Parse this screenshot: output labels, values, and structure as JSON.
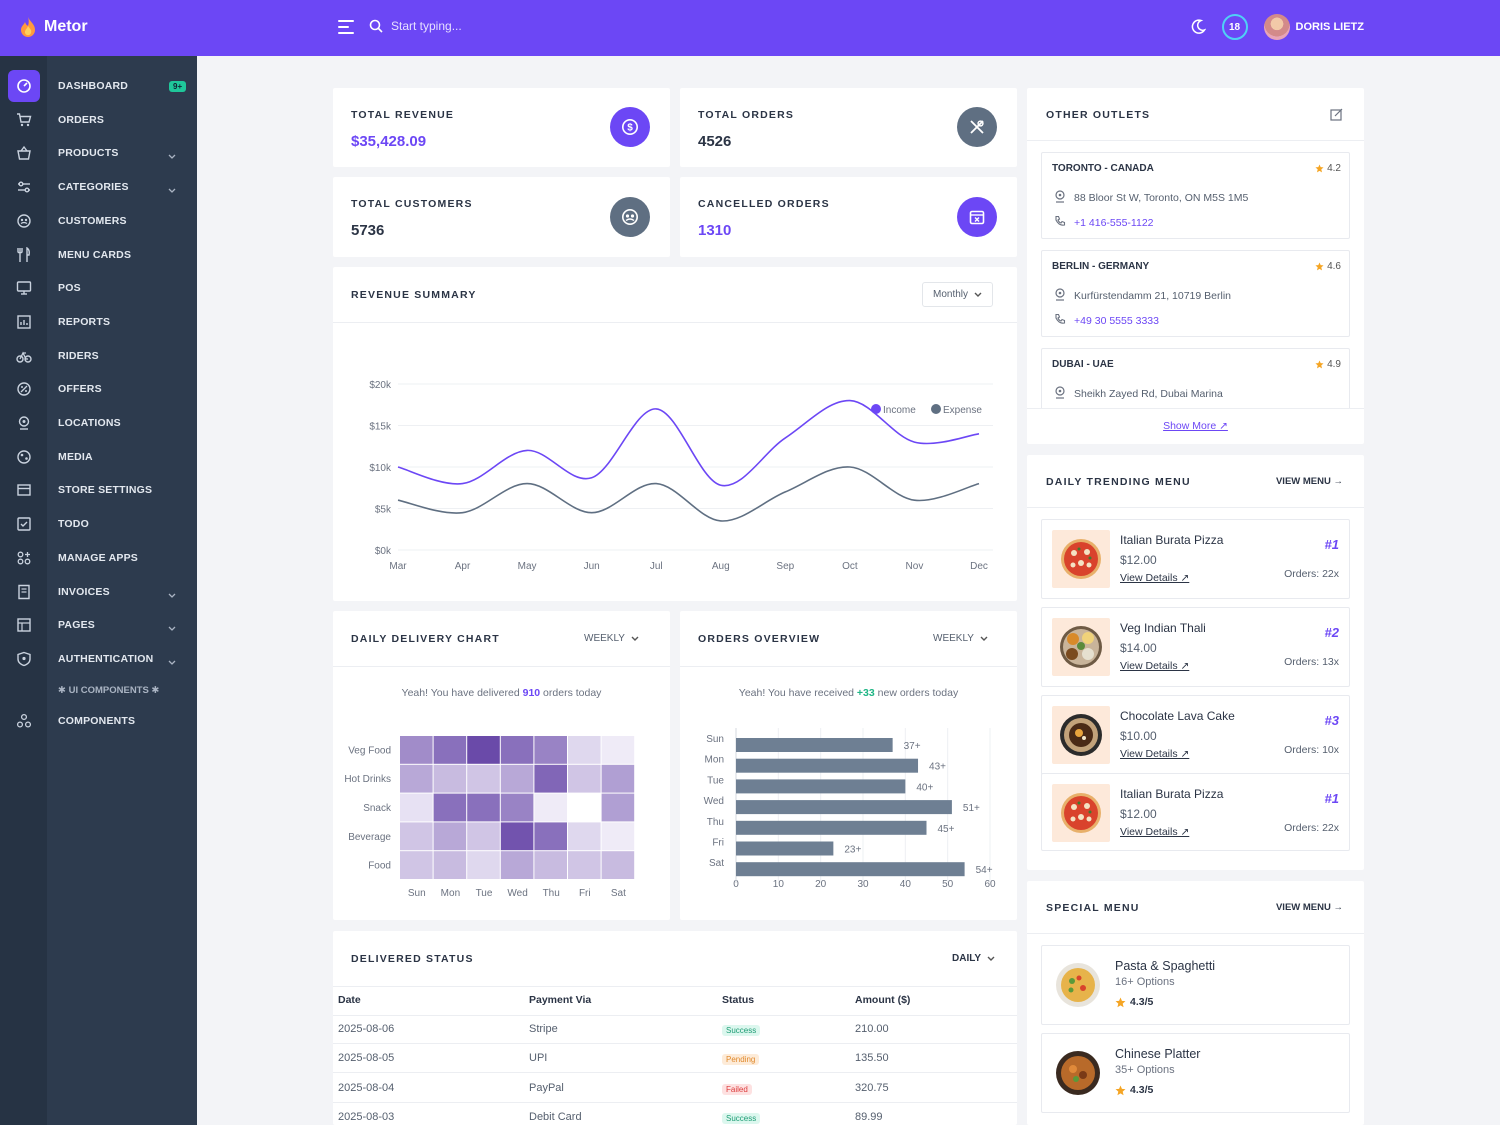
{
  "app": {
    "brand": "Metor"
  },
  "topbar": {
    "search_placeholder": "Start typing...",
    "notifications": "18",
    "user_name": "DORIS LIETZ"
  },
  "sidebar": {
    "items": [
      {
        "label": "DASHBOARD",
        "icon": "dashboard-icon",
        "badge": "9+",
        "active": true
      },
      {
        "label": "ORDERS",
        "icon": "cart-icon"
      },
      {
        "label": "PRODUCTS",
        "icon": "basket-icon",
        "chevron": true
      },
      {
        "label": "CATEGORIES",
        "icon": "sliders-icon",
        "chevron": true
      },
      {
        "label": "CUSTOMERS",
        "icon": "customers-icon"
      },
      {
        "label": "MENU CARDS",
        "icon": "utensils-icon"
      },
      {
        "label": "POS",
        "icon": "monitor-icon"
      },
      {
        "label": "REPORTS",
        "icon": "report-icon"
      },
      {
        "label": "RIDERS",
        "icon": "bike-icon"
      },
      {
        "label": "OFFERS",
        "icon": "offer-icon"
      },
      {
        "label": "LOCATIONS",
        "icon": "location-icon"
      },
      {
        "label": "MEDIA",
        "icon": "media-icon"
      },
      {
        "label": "STORE SETTINGS",
        "icon": "store-icon"
      },
      {
        "label": "TODO",
        "icon": "todo-icon"
      },
      {
        "label": "MANAGE APPS",
        "icon": "apps-icon"
      },
      {
        "label": "INVOICES",
        "icon": "invoice-icon",
        "chevron": true
      },
      {
        "label": "PAGES",
        "icon": "pages-icon",
        "chevron": true
      },
      {
        "label": "AUTHENTICATION",
        "icon": "shield-icon",
        "chevron": true
      }
    ],
    "section_label": "✱ UI COMPONENTS ✱",
    "components": "COMPONENTS"
  },
  "stats": {
    "revenue": {
      "title": "TOTAL REVENUE",
      "value": "$35,428.09"
    },
    "orders": {
      "title": "TOTAL ORDERS",
      "value": "4526"
    },
    "customers": {
      "title": "TOTAL CUSTOMERS",
      "value": "5736"
    },
    "cancelled": {
      "title": "CANCELLED ORDERS",
      "value": "1310"
    }
  },
  "revenue_summary": {
    "title": "REVENUE SUMMARY",
    "period": "Monthly"
  },
  "delivery": {
    "title": "DAILY DELIVERY CHART",
    "period": "WEEKLY",
    "note_pre": "Yeah! You have delivered ",
    "note_num": "910",
    "note_post": " orders today"
  },
  "orders_overview": {
    "title": "ORDERS OVERVIEW",
    "period": "WEEKLY",
    "note_pre": "Yeah! You have received ",
    "note_num": "+33",
    "note_post": " new orders today"
  },
  "delivered_status": {
    "title": "DELIVERED STATUS",
    "period": "DAILY",
    "headers": [
      "Date",
      "Payment Via",
      "Status",
      "Amount ($)"
    ],
    "rows": [
      {
        "date": "2025-08-06",
        "via": "Stripe",
        "status": "Success",
        "amount": "210.00"
      },
      {
        "date": "2025-08-05",
        "via": "UPI",
        "status": "Pending",
        "amount": "135.50"
      },
      {
        "date": "2025-08-04",
        "via": "PayPal",
        "status": "Failed",
        "amount": "320.75"
      },
      {
        "date": "2025-08-03",
        "via": "Debit Card",
        "status": "Success",
        "amount": "89.99"
      }
    ]
  },
  "outlets": {
    "title": "OTHER OUTLETS",
    "items": [
      {
        "name": "TORONTO - CANADA",
        "rating": "4.2",
        "address": "88 Bloor St W, Toronto, ON M5S 1M5",
        "phone": "+1 416-555-1122"
      },
      {
        "name": "BERLIN - GERMANY",
        "rating": "4.6",
        "address": "Kurfürstendamm 21, 10719 Berlin",
        "phone": "+49 30 5555 3333"
      },
      {
        "name": "DUBAI - UAE",
        "rating": "4.9",
        "address": "Sheikh Zayed Rd, Dubai Marina",
        "phone": ""
      }
    ],
    "show_more": "Show More ↗"
  },
  "trending": {
    "title": "DAILY TRENDING MENU",
    "view": "VIEW MENU →",
    "items": [
      {
        "name": "Italian Burata Pizza",
        "price": "$12.00",
        "link": "View Details ↗",
        "rank": "#1",
        "orders": "Orders: 22x",
        "kind": "pizza"
      },
      {
        "name": "Veg Indian Thali",
        "price": "$14.00",
        "link": "View Details ↗",
        "rank": "#2",
        "orders": "Orders: 13x",
        "kind": "thali"
      },
      {
        "name": "Chocolate Lava Cake",
        "price": "$10.00",
        "link": "View Details ↗",
        "rank": "#3",
        "orders": "Orders: 10x",
        "kind": "cake"
      },
      {
        "name": "Italian Burata Pizza",
        "price": "$12.00",
        "link": "View Details ↗",
        "rank": "#1",
        "orders": "Orders: 22x",
        "kind": "pizza"
      }
    ]
  },
  "special": {
    "title": "SPECIAL MENU",
    "view": "VIEW MENU →",
    "items": [
      {
        "name": "Pasta & Spaghetti",
        "options": "16+ Options",
        "rating": "4.3/5"
      },
      {
        "name": "Chinese Platter",
        "options": "35+ Options",
        "rating": "4.3/5"
      }
    ]
  },
  "colors": {
    "accent": "#6c47f5",
    "slate": "#5f6f82",
    "sidebar": "#2d3b4e"
  },
  "chart_data": [
    {
      "type": "line",
      "title": "REVENUE SUMMARY",
      "categories": [
        "Mar",
        "Apr",
        "May",
        "Jun",
        "Jul",
        "Aug",
        "Sep",
        "Oct",
        "Nov",
        "Dec"
      ],
      "yticks": [
        "$0k",
        "$5k",
        "$10k",
        "$15k",
        "$20k"
      ],
      "ylim": [
        0,
        20000
      ],
      "series": [
        {
          "name": "Income",
          "color": "#6c47f5",
          "values": [
            10000,
            8000,
            12000,
            8700,
            17000,
            7800,
            13500,
            18000,
            13000,
            14000
          ]
        },
        {
          "name": "Expense",
          "color": "#5f6f82",
          "values": [
            6000,
            4500,
            8000,
            4500,
            8000,
            3500,
            7000,
            10000,
            6000,
            8000
          ]
        }
      ]
    },
    {
      "type": "heatmap",
      "title": "DAILY DELIVERY CHART",
      "rows": [
        "Veg Food",
        "Hot Drinks",
        "Snack",
        "Beverage",
        "Food"
      ],
      "columns": [
        "Sun",
        "Mon",
        "Tue",
        "Wed",
        "Thu",
        "Fri",
        "Sat"
      ],
      "values": [
        [
          55,
          70,
          90,
          70,
          60,
          15,
          5
        ],
        [
          40,
          30,
          25,
          40,
          75,
          25,
          45
        ],
        [
          10,
          70,
          70,
          60,
          5,
          0,
          45
        ],
        [
          25,
          40,
          25,
          85,
          70,
          15,
          5
        ],
        [
          25,
          30,
          15,
          40,
          30,
          25,
          30
        ]
      ]
    },
    {
      "type": "bar",
      "orientation": "horizontal",
      "title": "ORDERS OVERVIEW",
      "categories": [
        "Sun",
        "Mon",
        "Tue",
        "Wed",
        "Thu",
        "Fri",
        "Sat"
      ],
      "values": [
        37,
        43,
        40,
        51,
        45,
        23,
        54
      ],
      "labels": [
        "37+",
        "43+",
        "40+",
        "51+",
        "45+",
        "23+",
        "54+"
      ],
      "xticks": [
        "0",
        "10",
        "20",
        "30",
        "40",
        "50",
        "60"
      ],
      "xlim": [
        0,
        60
      ]
    }
  ]
}
